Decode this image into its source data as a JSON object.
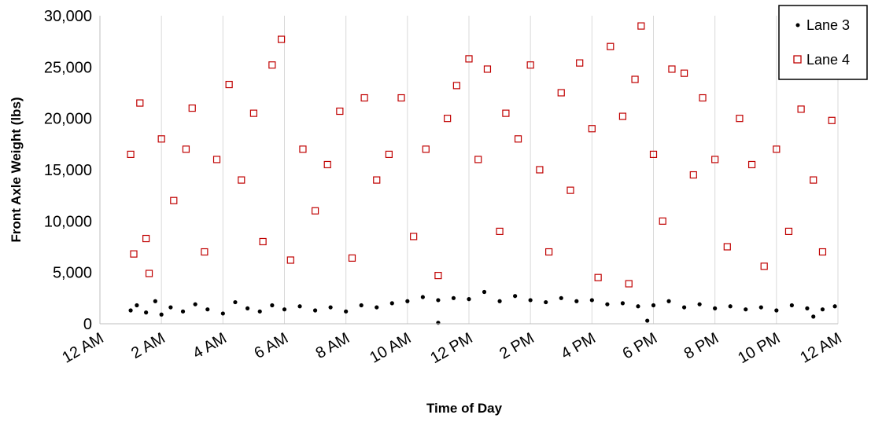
{
  "chart_data": {
    "type": "scatter",
    "title": "",
    "xlabel": "Time of Day",
    "ylabel": "Front Axle Weight (lbs)",
    "xlim": [
      0,
      24
    ],
    "ylim": [
      0,
      30000
    ],
    "x_unit": "hours since midnight",
    "x_ticks": [
      0,
      2,
      4,
      6,
      8,
      10,
      12,
      14,
      16,
      18,
      20,
      22,
      24
    ],
    "x_tick_labels": [
      "12 AM",
      "2 AM",
      "4 AM",
      "6 AM",
      "8 AM",
      "10 AM",
      "12 PM",
      "2 PM",
      "4 PM",
      "6 PM",
      "8 PM",
      "10 PM",
      "12 AM"
    ],
    "y_ticks": [
      0,
      5000,
      10000,
      15000,
      20000,
      25000,
      30000
    ],
    "y_tick_labels": [
      "0",
      "5,000",
      "10,000",
      "15,000",
      "20,000",
      "25,000",
      "30,000"
    ],
    "grid": "vertical",
    "legend_position": "top-right",
    "series": [
      {
        "name": "Lane 3",
        "marker": "filled-dot",
        "color": "#000000",
        "points": [
          [
            1.0,
            1300
          ],
          [
            1.2,
            1800
          ],
          [
            1.5,
            1100
          ],
          [
            1.8,
            2200
          ],
          [
            2.0,
            900
          ],
          [
            2.3,
            1600
          ],
          [
            2.7,
            1200
          ],
          [
            3.1,
            1900
          ],
          [
            3.5,
            1400
          ],
          [
            4.0,
            1000
          ],
          [
            4.4,
            2100
          ],
          [
            4.8,
            1500
          ],
          [
            5.2,
            1200
          ],
          [
            5.6,
            1800
          ],
          [
            6.0,
            1400
          ],
          [
            6.5,
            1700
          ],
          [
            7.0,
            1300
          ],
          [
            7.5,
            1600
          ],
          [
            8.0,
            1200
          ],
          [
            8.5,
            1800
          ],
          [
            9.0,
            1600
          ],
          [
            9.5,
            2000
          ],
          [
            10.0,
            2200
          ],
          [
            10.5,
            2600
          ],
          [
            11.0,
            2300
          ],
          [
            11.5,
            2500
          ],
          [
            11.0,
            100
          ],
          [
            12.0,
            2400
          ],
          [
            12.5,
            3100
          ],
          [
            13.0,
            2200
          ],
          [
            13.5,
            2700
          ],
          [
            14.0,
            2300
          ],
          [
            14.5,
            2100
          ],
          [
            15.0,
            2500
          ],
          [
            15.5,
            2200
          ],
          [
            16.0,
            2300
          ],
          [
            16.5,
            1900
          ],
          [
            17.0,
            2000
          ],
          [
            17.5,
            1700
          ],
          [
            17.8,
            300
          ],
          [
            18.0,
            1800
          ],
          [
            18.5,
            2200
          ],
          [
            19.0,
            1600
          ],
          [
            19.5,
            1900
          ],
          [
            20.0,
            1500
          ],
          [
            20.5,
            1700
          ],
          [
            21.0,
            1400
          ],
          [
            21.5,
            1600
          ],
          [
            22.0,
            1300
          ],
          [
            22.5,
            1800
          ],
          [
            23.0,
            1500
          ],
          [
            23.2,
            700
          ],
          [
            23.5,
            1400
          ],
          [
            23.9,
            1700
          ]
        ]
      },
      {
        "name": "Lane 4",
        "marker": "open-square",
        "color": "#c00000",
        "points": [
          [
            1.0,
            16500
          ],
          [
            1.1,
            6800
          ],
          [
            1.3,
            21500
          ],
          [
            1.5,
            8300
          ],
          [
            1.6,
            4900
          ],
          [
            2.0,
            18000
          ],
          [
            2.4,
            12000
          ],
          [
            2.8,
            17000
          ],
          [
            3.0,
            21000
          ],
          [
            3.4,
            7000
          ],
          [
            3.8,
            16000
          ],
          [
            4.2,
            23300
          ],
          [
            4.6,
            14000
          ],
          [
            5.0,
            20500
          ],
          [
            5.3,
            8000
          ],
          [
            5.6,
            25200
          ],
          [
            5.9,
            27700
          ],
          [
            6.2,
            6200
          ],
          [
            6.6,
            17000
          ],
          [
            7.0,
            11000
          ],
          [
            7.4,
            15500
          ],
          [
            7.8,
            20700
          ],
          [
            8.2,
            6400
          ],
          [
            8.6,
            22000
          ],
          [
            9.0,
            14000
          ],
          [
            9.4,
            16500
          ],
          [
            9.8,
            22000
          ],
          [
            10.2,
            8500
          ],
          [
            10.6,
            17000
          ],
          [
            11.0,
            4700
          ],
          [
            11.3,
            20000
          ],
          [
            11.6,
            23200
          ],
          [
            12.0,
            25800
          ],
          [
            12.3,
            16000
          ],
          [
            12.6,
            24800
          ],
          [
            13.0,
            9000
          ],
          [
            13.2,
            20500
          ],
          [
            13.6,
            18000
          ],
          [
            14.0,
            25200
          ],
          [
            14.3,
            15000
          ],
          [
            14.6,
            7000
          ],
          [
            15.0,
            22500
          ],
          [
            15.3,
            13000
          ],
          [
            15.6,
            25400
          ],
          [
            16.0,
            19000
          ],
          [
            16.2,
            4500
          ],
          [
            16.6,
            27000
          ],
          [
            17.0,
            20200
          ],
          [
            17.2,
            3900
          ],
          [
            17.4,
            23800
          ],
          [
            17.6,
            29000
          ],
          [
            18.0,
            16500
          ],
          [
            18.3,
            10000
          ],
          [
            18.6,
            24800
          ],
          [
            19.0,
            24400
          ],
          [
            19.3,
            14500
          ],
          [
            19.6,
            22000
          ],
          [
            20.0,
            16000
          ],
          [
            20.4,
            7500
          ],
          [
            20.8,
            20000
          ],
          [
            21.2,
            15500
          ],
          [
            21.6,
            5600
          ],
          [
            22.0,
            17000
          ],
          [
            22.4,
            9000
          ],
          [
            22.8,
            20900
          ],
          [
            23.2,
            14000
          ],
          [
            23.5,
            7000
          ],
          [
            23.8,
            19800
          ]
        ]
      }
    ]
  }
}
